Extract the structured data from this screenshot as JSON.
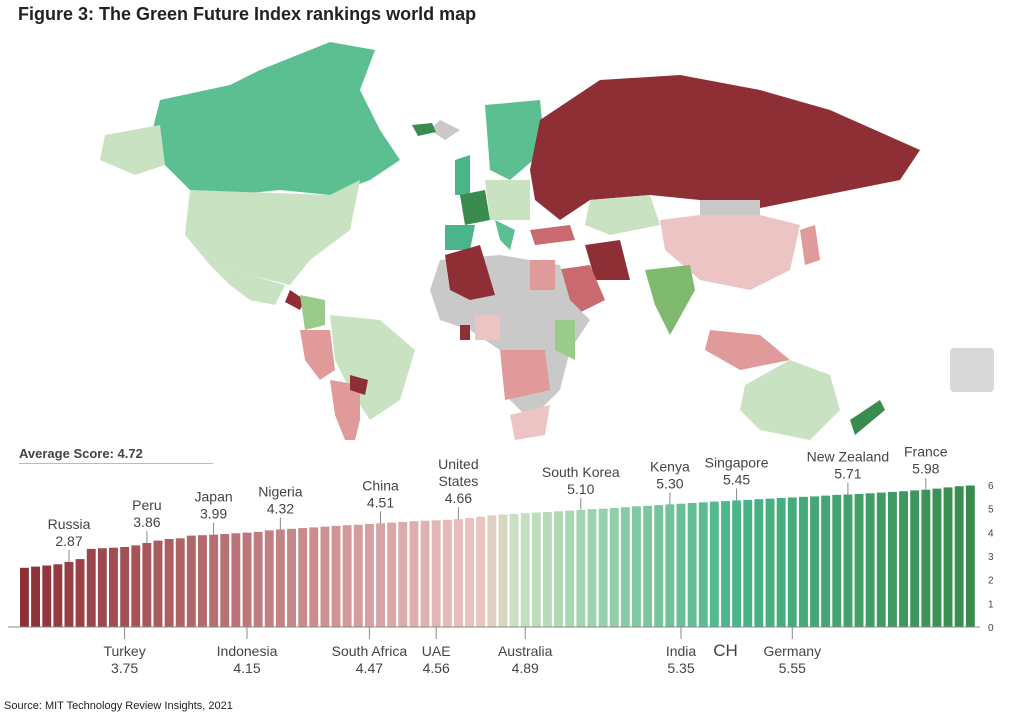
{
  "title": "Figure 3: The Green Future Index rankings world map",
  "average_label": "Average Score: 4.72",
  "source": "Source: MIT Technology Review Insights, 2021",
  "colors": {
    "dark_red": "#8e2f36",
    "light_pink": "#ecc4c3",
    "light_green": "#c8e2c2",
    "teal_green": "#4ab58a",
    "dark_green": "#3a8c4e",
    "no_data": "#cfcfcf",
    "highlight": "#e04848"
  },
  "chart_data": {
    "type": "bar",
    "title": "",
    "yticks": [
      0,
      1,
      2,
      3,
      4,
      5,
      6
    ],
    "ylim": [
      0,
      6
    ],
    "values": [
      2.5,
      2.55,
      2.6,
      2.65,
      2.75,
      2.87,
      3.3,
      3.33,
      3.35,
      3.38,
      3.45,
      3.55,
      3.65,
      3.72,
      3.75,
      3.86,
      3.88,
      3.9,
      3.93,
      3.96,
      3.99,
      4.02,
      4.08,
      4.12,
      4.15,
      4.18,
      4.21,
      4.24,
      4.27,
      4.3,
      4.32,
      4.35,
      4.38,
      4.41,
      4.44,
      4.47,
      4.49,
      4.51,
      4.53,
      4.56,
      4.6,
      4.66,
      4.72,
      4.75,
      4.78,
      4.81,
      4.84,
      4.86,
      4.89,
      4.92,
      4.95,
      4.98,
      5.0,
      5.03,
      5.06,
      5.1,
      5.12,
      5.15,
      5.18,
      5.21,
      5.24,
      5.27,
      5.3,
      5.32,
      5.35,
      5.37,
      5.4,
      5.42,
      5.45,
      5.47,
      5.5,
      5.52,
      5.55,
      5.58,
      5.6,
      5.62,
      5.65,
      5.68,
      5.71,
      5.74,
      5.77,
      5.8,
      5.85,
      5.9,
      5.95,
      5.98
    ],
    "labels_top": [
      {
        "name": "Russia",
        "value": "2.87",
        "index": 4
      },
      {
        "name": "Peru",
        "value": "3.86",
        "index": 11
      },
      {
        "name": "Japan",
        "value": "3.99",
        "index": 17
      },
      {
        "name": "Nigeria",
        "value": "4.32",
        "index": 23
      },
      {
        "name": "China",
        "value": "4.51",
        "index": 32
      },
      {
        "name": "United States",
        "value": "4.66",
        "index": 39,
        "lines": [
          "United",
          "States"
        ]
      },
      {
        "name": "South Korea",
        "value": "5.10",
        "index": 50
      },
      {
        "name": "Kenya",
        "value": "5.30",
        "index": 58
      },
      {
        "name": "Singapore",
        "value": "5.45",
        "index": 64
      },
      {
        "name": "New Zealand",
        "value": "5.71",
        "index": 74
      },
      {
        "name": "France",
        "value": "5.98",
        "index": 81
      }
    ],
    "labels_bottom": [
      {
        "name": "Turkey",
        "value": "3.75",
        "index": 9
      },
      {
        "name": "Indonesia",
        "value": "4.15",
        "index": 20
      },
      {
        "name": "South Africa",
        "value": "4.47",
        "index": 31
      },
      {
        "name": "UAE",
        "value": "4.56",
        "index": 37
      },
      {
        "name": "Australia",
        "value": "4.89",
        "index": 45
      },
      {
        "name": "India",
        "value": "5.35",
        "index": 59
      },
      {
        "name": "CH",
        "value": "",
        "index": 63,
        "highlight": true
      },
      {
        "name": "Germany",
        "value": "5.55",
        "index": 69
      }
    ]
  }
}
